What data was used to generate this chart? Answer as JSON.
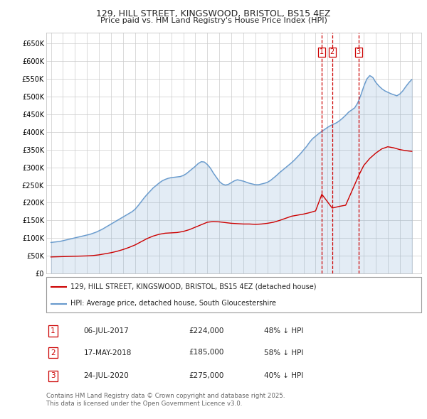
{
  "title_line1": "129, HILL STREET, KINGSWOOD, BRISTOL, BS15 4EZ",
  "title_line2": "Price paid vs. HM Land Registry's House Price Index (HPI)",
  "background_color": "#ffffff",
  "plot_bg_color": "#ffffff",
  "grid_color": "#cccccc",
  "hpi_color": "#6699cc",
  "hpi_fill_alpha": 0.18,
  "price_color": "#cc0000",
  "dashed_color": "#cc0000",
  "ylim": [
    0,
    680000
  ],
  "yticks": [
    0,
    50000,
    100000,
    150000,
    200000,
    250000,
    300000,
    350000,
    400000,
    450000,
    500000,
    550000,
    600000,
    650000
  ],
  "ytick_labels": [
    "£0",
    "£50K",
    "£100K",
    "£150K",
    "£200K",
    "£250K",
    "£300K",
    "£350K",
    "£400K",
    "£450K",
    "£500K",
    "£550K",
    "£600K",
    "£650K"
  ],
  "xlim_start": 1994.6,
  "xlim_end": 2025.8,
  "xticks": [
    1995,
    1996,
    1997,
    1998,
    1999,
    2000,
    2001,
    2002,
    2003,
    2004,
    2005,
    2006,
    2007,
    2008,
    2009,
    2010,
    2011,
    2012,
    2013,
    2014,
    2015,
    2016,
    2017,
    2018,
    2019,
    2020,
    2021,
    2022,
    2023,
    2024,
    2025
  ],
  "legend_entries": [
    "129, HILL STREET, KINGSWOOD, BRISTOL, BS15 4EZ (detached house)",
    "HPI: Average price, detached house, South Gloucestershire"
  ],
  "table_entries": [
    {
      "num": "1",
      "date": "06-JUL-2017",
      "price": "£224,000",
      "pct": "48% ↓ HPI",
      "x": 2017.52
    },
    {
      "num": "2",
      "date": "17-MAY-2018",
      "price": "£185,000",
      "pct": "58% ↓ HPI",
      "x": 2018.38
    },
    {
      "num": "3",
      "date": "24-JUL-2020",
      "price": "£275,000",
      "pct": "40% ↓ HPI",
      "x": 2020.56
    }
  ],
  "footer_text": "Contains HM Land Registry data © Crown copyright and database right 2025.\nThis data is licensed under the Open Government Licence v3.0.",
  "hpi_x": [
    1995.0,
    1995.25,
    1995.5,
    1995.75,
    1996.0,
    1996.25,
    1996.5,
    1996.75,
    1997.0,
    1997.25,
    1997.5,
    1997.75,
    1998.0,
    1998.25,
    1998.5,
    1998.75,
    1999.0,
    1999.25,
    1999.5,
    1999.75,
    2000.0,
    2000.25,
    2000.5,
    2000.75,
    2001.0,
    2001.25,
    2001.5,
    2001.75,
    2002.0,
    2002.25,
    2002.5,
    2002.75,
    2003.0,
    2003.25,
    2003.5,
    2003.75,
    2004.0,
    2004.25,
    2004.5,
    2004.75,
    2005.0,
    2005.25,
    2005.5,
    2005.75,
    2006.0,
    2006.25,
    2006.5,
    2006.75,
    2007.0,
    2007.25,
    2007.5,
    2007.75,
    2008.0,
    2008.25,
    2008.5,
    2008.75,
    2009.0,
    2009.25,
    2009.5,
    2009.75,
    2010.0,
    2010.25,
    2010.5,
    2010.75,
    2011.0,
    2011.25,
    2011.5,
    2011.75,
    2012.0,
    2012.25,
    2012.5,
    2012.75,
    2013.0,
    2013.25,
    2013.5,
    2013.75,
    2014.0,
    2014.25,
    2014.5,
    2014.75,
    2015.0,
    2015.25,
    2015.5,
    2015.75,
    2016.0,
    2016.25,
    2016.5,
    2016.75,
    2017.0,
    2017.25,
    2017.5,
    2017.75,
    2018.0,
    2018.25,
    2018.5,
    2018.75,
    2019.0,
    2019.25,
    2019.5,
    2019.75,
    2020.0,
    2020.25,
    2020.5,
    2020.75,
    2021.0,
    2021.25,
    2021.5,
    2021.75,
    2022.0,
    2022.25,
    2022.5,
    2022.75,
    2023.0,
    2023.25,
    2023.5,
    2023.75,
    2024.0,
    2024.25,
    2024.5,
    2024.75,
    2025.0
  ],
  "hpi_y": [
    88000,
    89000,
    90000,
    91000,
    93000,
    95000,
    97000,
    99000,
    101000,
    103000,
    105000,
    107000,
    109000,
    111000,
    114000,
    117000,
    121000,
    125000,
    130000,
    135000,
    140000,
    145000,
    150000,
    155000,
    160000,
    165000,
    170000,
    175000,
    182000,
    192000,
    203000,
    214000,
    224000,
    233000,
    242000,
    249000,
    256000,
    262000,
    266000,
    269000,
    271000,
    272000,
    273000,
    274000,
    277000,
    282000,
    289000,
    296000,
    303000,
    311000,
    316000,
    315000,
    308000,
    298000,
    284000,
    272000,
    260000,
    253000,
    250000,
    252000,
    257000,
    262000,
    265000,
    263000,
    261000,
    258000,
    255000,
    253000,
    251000,
    251000,
    253000,
    255000,
    258000,
    263000,
    270000,
    277000,
    285000,
    292000,
    299000,
    306000,
    313000,
    321000,
    330000,
    339000,
    349000,
    359000,
    371000,
    381000,
    388000,
    395000,
    401000,
    407000,
    413000,
    418000,
    422000,
    426000,
    432000,
    439000,
    447000,
    456000,
    462000,
    468000,
    482000,
    503000,
    528000,
    549000,
    559000,
    554000,
    540000,
    530000,
    522000,
    516000,
    512000,
    508000,
    505000,
    502000,
    507000,
    516000,
    528000,
    539000,
    548000
  ],
  "price_x": [
    1995.0,
    1995.5,
    1996.0,
    1996.5,
    1997.0,
    1997.5,
    1998.0,
    1998.5,
    1999.0,
    1999.5,
    2000.0,
    2000.5,
    2001.0,
    2001.5,
    2002.0,
    2002.5,
    2003.0,
    2003.5,
    2004.0,
    2004.5,
    2005.0,
    2005.5,
    2006.0,
    2006.5,
    2007.0,
    2007.5,
    2008.0,
    2008.5,
    2009.0,
    2009.5,
    2010.0,
    2010.5,
    2011.0,
    2011.5,
    2012.0,
    2012.5,
    2013.0,
    2013.5,
    2014.0,
    2014.5,
    2015.0,
    2015.5,
    2016.0,
    2016.5,
    2017.0,
    2017.52,
    2018.38,
    2019.0,
    2019.5,
    2020.56,
    2021.0,
    2021.5,
    2022.0,
    2022.5,
    2023.0,
    2023.5,
    2024.0,
    2024.5,
    2025.0
  ],
  "price_y": [
    47000,
    47500,
    48000,
    48500,
    49000,
    49500,
    50000,
    51000,
    53000,
    56000,
    59000,
    63000,
    68000,
    74000,
    81000,
    90000,
    99000,
    106000,
    111000,
    114000,
    115000,
    116000,
    119000,
    124000,
    131000,
    138000,
    145000,
    147000,
    146000,
    144000,
    142000,
    141000,
    140000,
    140000,
    139000,
    140000,
    142000,
    145000,
    150000,
    156000,
    162000,
    165000,
    168000,
    172000,
    177000,
    224000,
    185000,
    190000,
    193000,
    275000,
    305000,
    325000,
    340000,
    352000,
    358000,
    355000,
    350000,
    347000,
    345000
  ]
}
